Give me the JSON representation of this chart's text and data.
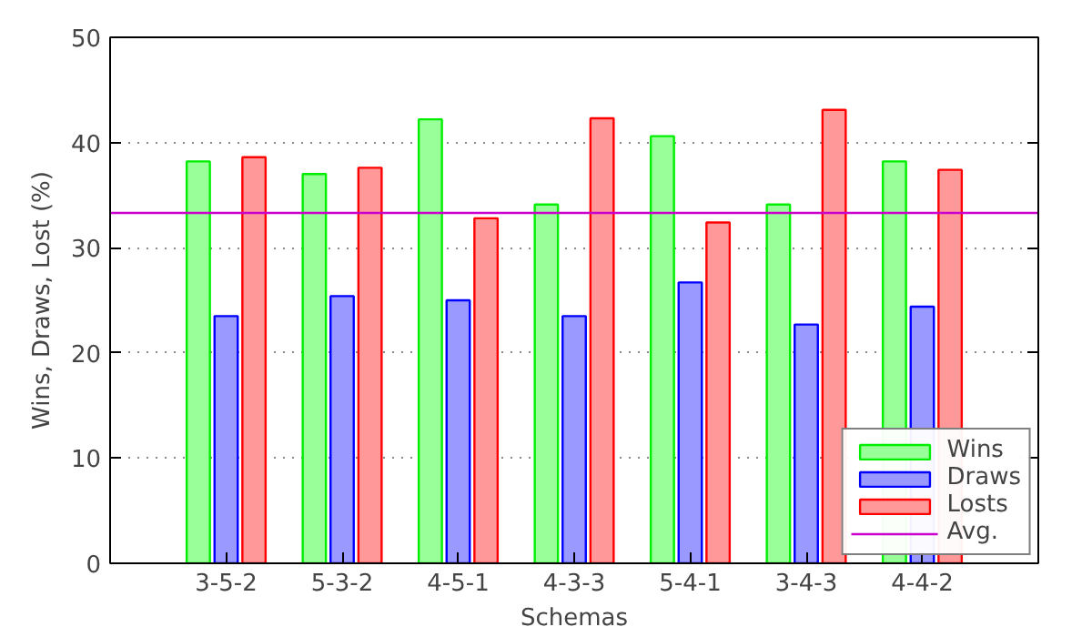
{
  "chart_data": {
    "type": "bar",
    "xlabel": "Schemas",
    "ylabel": "Wins, Draws, Lost (%)",
    "categories": [
      "3-5-2",
      "5-3-2",
      "4-5-1",
      "4-3-3",
      "5-4-1",
      "3-4-3",
      "4-4-2"
    ],
    "series": [
      {
        "name": "Wins",
        "color": "#99ff99",
        "values": [
          38.2,
          37.0,
          42.2,
          34.1,
          40.6,
          34.1,
          38.2
        ]
      },
      {
        "name": "Draws",
        "color": "#9999ff",
        "values": [
          23.5,
          25.4,
          25.0,
          23.5,
          26.7,
          22.7,
          24.4
        ]
      },
      {
        "name": "Losts",
        "color": "#ff9999",
        "values": [
          38.6,
          37.6,
          32.8,
          42.3,
          32.4,
          43.1,
          37.4
        ]
      }
    ],
    "ref_lines": [
      {
        "axis": "y",
        "value": 33.3,
        "label": "Avg.",
        "color": "#cc00cc"
      }
    ],
    "ylim": [
      0,
      50
    ],
    "yticks": [
      0,
      10,
      20,
      30,
      40,
      50
    ],
    "grid": "y",
    "legend": "bottom right"
  }
}
